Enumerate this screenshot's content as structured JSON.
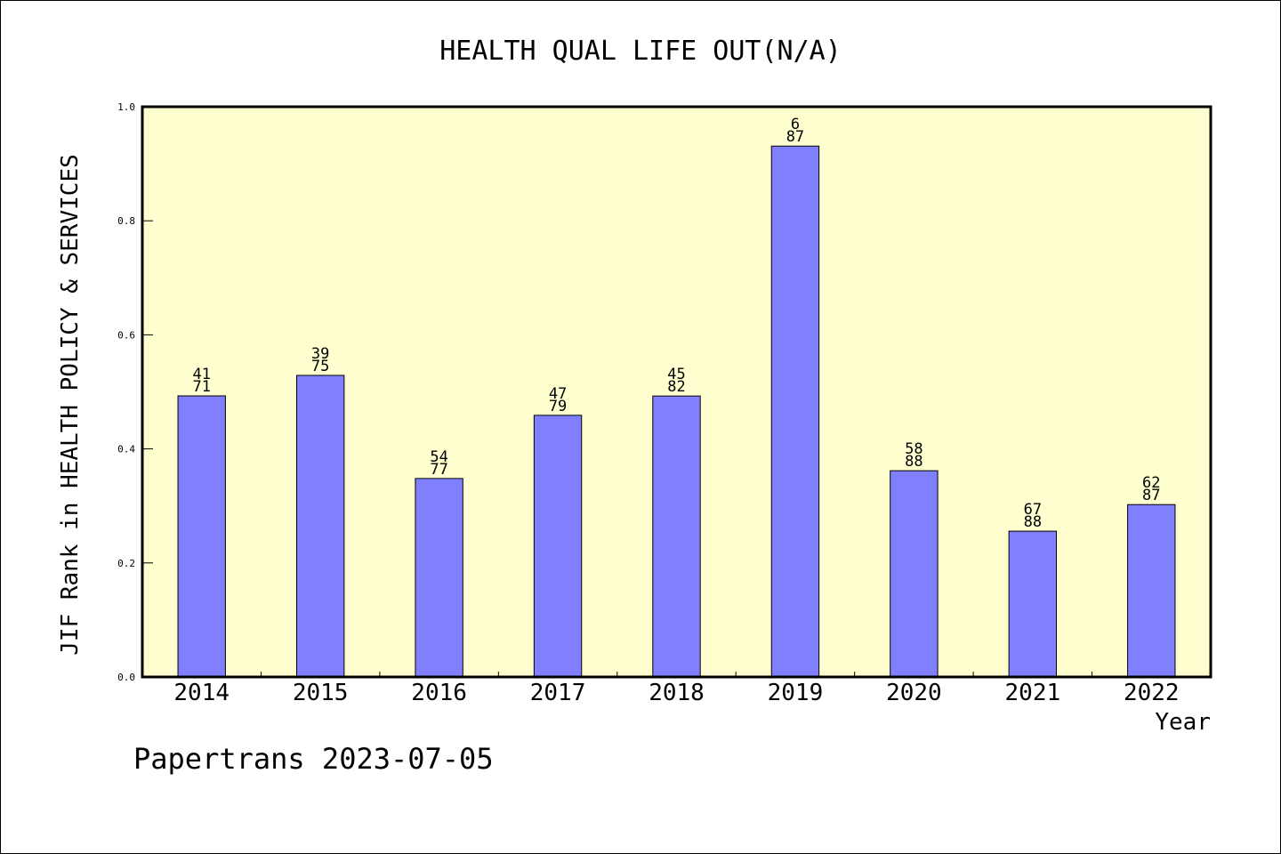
{
  "chart_data": {
    "type": "bar",
    "title": "HEALTH QUAL LIFE OUT(N/A)",
    "ylabel": "JIF Rank in HEALTH POLICY & SERVICES",
    "xlabel": "Year",
    "ylim": [
      0,
      1.0
    ],
    "yticks": [
      "0.0",
      "0.2",
      "0.4",
      "0.6",
      "0.8",
      "1.0"
    ],
    "categories": [
      "2014",
      "2015",
      "2016",
      "2017",
      "2018",
      "2019",
      "2020",
      "2021",
      "2022"
    ],
    "values": [
      0.493,
      0.5289,
      0.3481,
      0.4589,
      0.4927,
      0.931,
      0.3617,
      0.2557,
      0.3023
    ],
    "rank": [
      "41",
      "39",
      "54",
      "47",
      "45",
      "6",
      "58",
      "67",
      "62"
    ],
    "total": [
      "71",
      "75",
      "77",
      "79",
      "82",
      "87",
      "88",
      "88",
      "87"
    ],
    "bar_color": "#8080ff",
    "plot_background": "#ffffd0",
    "grid": false
  },
  "footer": {
    "text": "Papertrans 2023-07-05"
  }
}
